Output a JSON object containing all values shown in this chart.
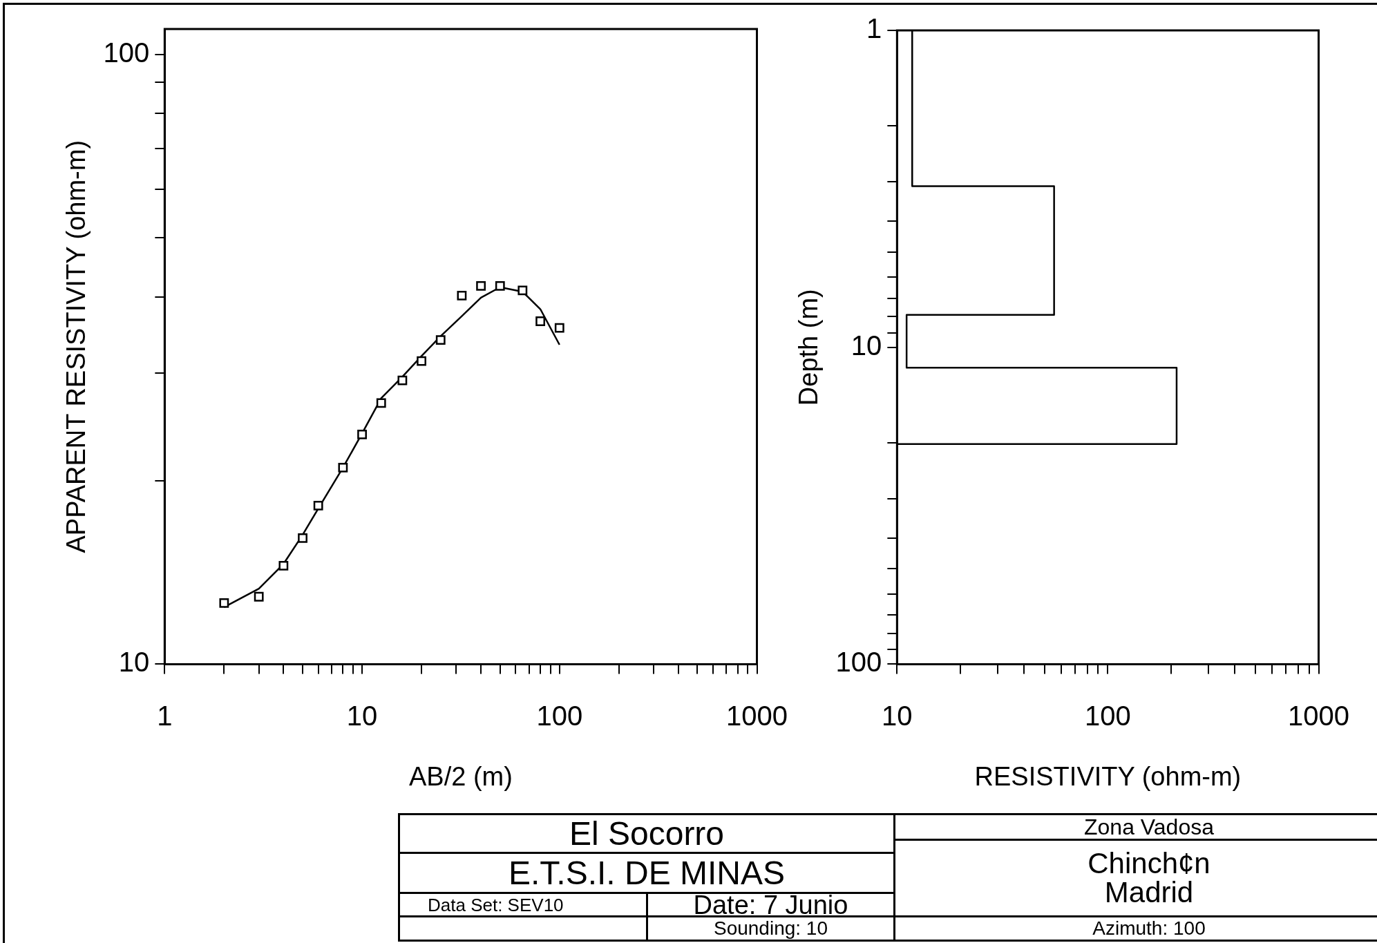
{
  "chart_data": [
    {
      "type": "scatter",
      "xlabel": "AB/2 (m)",
      "ylabel": "APPARENT RESISTIVITY (ohm-m)",
      "log": "xy",
      "grid": false,
      "legend": false,
      "marker": "square",
      "xlim": [
        1,
        1000
      ],
      "ylim": [
        10,
        110
      ],
      "xticks": [
        1,
        {
          "value": 2,
          "label": null
        },
        {
          "value": 3,
          "label": null
        },
        {
          "value": 4,
          "label": null
        },
        {
          "value": 5,
          "label": null
        },
        {
          "value": 6,
          "label": null
        },
        {
          "value": 7,
          "label": null
        },
        {
          "value": 8,
          "label": null
        },
        {
          "value": 9,
          "label": null
        },
        10,
        {
          "value": 20,
          "label": null
        },
        {
          "value": 30,
          "label": null
        },
        {
          "value": 40,
          "label": null
        },
        {
          "value": 50,
          "label": null
        },
        {
          "value": 60,
          "label": null
        },
        {
          "value": 70,
          "label": null
        },
        {
          "value": 80,
          "label": null
        },
        {
          "value": 90,
          "label": null
        },
        100,
        {
          "value": 200,
          "label": null
        },
        {
          "value": 300,
          "label": null
        },
        {
          "value": 400,
          "label": null
        },
        {
          "value": 500,
          "label": null
        },
        {
          "value": 600,
          "label": null
        },
        {
          "value": 700,
          "label": null
        },
        {
          "value": 800,
          "label": null
        },
        {
          "value": 900,
          "label": null
        },
        1000
      ],
      "yticks": [
        10,
        {
          "value": 20,
          "label": null
        },
        {
          "value": 30,
          "label": null
        },
        {
          "value": 40,
          "label": null
        },
        {
          "value": 50,
          "label": null
        },
        {
          "value": 60,
          "label": null
        },
        {
          "value": 70,
          "label": null
        },
        {
          "value": 80,
          "label": null
        },
        {
          "value": 90,
          "label": null
        },
        100
      ],
      "series": [
        {
          "type": "scatter",
          "color": "#000000",
          "x": [
            2,
            3,
            4,
            5,
            6,
            8,
            10,
            12.5,
            16,
            20,
            25,
            32,
            40,
            50,
            65,
            80,
            100
          ],
          "values": [
            12.6,
            12.9,
            14.5,
            16.1,
            18.2,
            21,
            23.8,
            26.8,
            29.2,
            31.4,
            34,
            40.2,
            41.7,
            41.7,
            41,
            36.5,
            35.6
          ]
        },
        {
          "type": "line",
          "marker": "none",
          "line_style": "solid",
          "color": "#000000",
          "x": [
            2,
            3,
            4,
            5,
            6,
            8,
            10,
            12.5,
            16,
            20,
            25,
            32,
            40,
            50,
            65,
            80,
            100
          ],
          "values": [
            12.4,
            13.3,
            14.6,
            16.3,
            18,
            21,
            23.9,
            27.3,
            29.6,
            32,
            34.5,
            37.2,
            39.9,
            41.5,
            40.8,
            38.2,
            33.4
          ]
        }
      ]
    },
    {
      "type": "line",
      "xlabel": "RESISTIVITY (ohm-m)",
      "ylabel": "Depth (m)",
      "log": "xy",
      "grid": false,
      "legend": false,
      "marker": "none",
      "line_style": "solid",
      "xlim": [
        10,
        1000
      ],
      "ylim": [
        100,
        1
      ],
      "xticks": [
        10,
        {
          "value": 20,
          "label": null
        },
        {
          "value": 30,
          "label": null
        },
        {
          "value": 40,
          "label": null
        },
        {
          "value": 50,
          "label": null
        },
        {
          "value": 60,
          "label": null
        },
        {
          "value": 70,
          "label": null
        },
        {
          "value": 80,
          "label": null
        },
        {
          "value": 90,
          "label": null
        },
        100,
        {
          "value": 200,
          "label": null
        },
        {
          "value": 300,
          "label": null
        },
        {
          "value": 400,
          "label": null
        },
        {
          "value": 500,
          "label": null
        },
        {
          "value": 600,
          "label": null
        },
        {
          "value": 700,
          "label": null
        },
        {
          "value": 800,
          "label": null
        },
        {
          "value": 900,
          "label": null
        },
        1000
      ],
      "yticks": [
        1,
        {
          "value": 2,
          "label": null
        },
        {
          "value": 3,
          "label": null
        },
        {
          "value": 4,
          "label": null
        },
        {
          "value": 5,
          "label": null
        },
        {
          "value": 6,
          "label": null
        },
        {
          "value": 7,
          "label": null
        },
        {
          "value": 8,
          "label": null
        },
        {
          "value": 9,
          "label": null
        },
        10,
        {
          "value": 20,
          "label": null
        },
        {
          "value": 30,
          "label": null
        },
        {
          "value": 40,
          "label": null
        },
        {
          "value": 50,
          "label": null
        },
        {
          "value": 60,
          "label": null
        },
        {
          "value": 70,
          "label": null
        },
        {
          "value": 80,
          "label": null
        },
        {
          "value": 90,
          "label": null
        },
        100
      ],
      "series": [
        {
          "color": "#000000",
          "x": [
            11.8,
            11.8,
            55.6,
            55.6,
            11.1,
            11.1,
            212,
            212,
            10
          ],
          "values": [
            1,
            3.1,
            3.1,
            7.9,
            7.9,
            11.6,
            11.6,
            20.2,
            20.2
          ]
        }
      ]
    },
    {
      "type": "other",
      "annotations": [
        "El Socorro",
        "E.T.S.I. DE MINAS",
        "Data Set: SEV10",
        "Date: 7 Junio",
        "Sounding: 10",
        "Zona Vadosa",
        "Chinch¢n",
        "Madrid",
        "Azimuth: 100"
      ]
    }
  ]
}
